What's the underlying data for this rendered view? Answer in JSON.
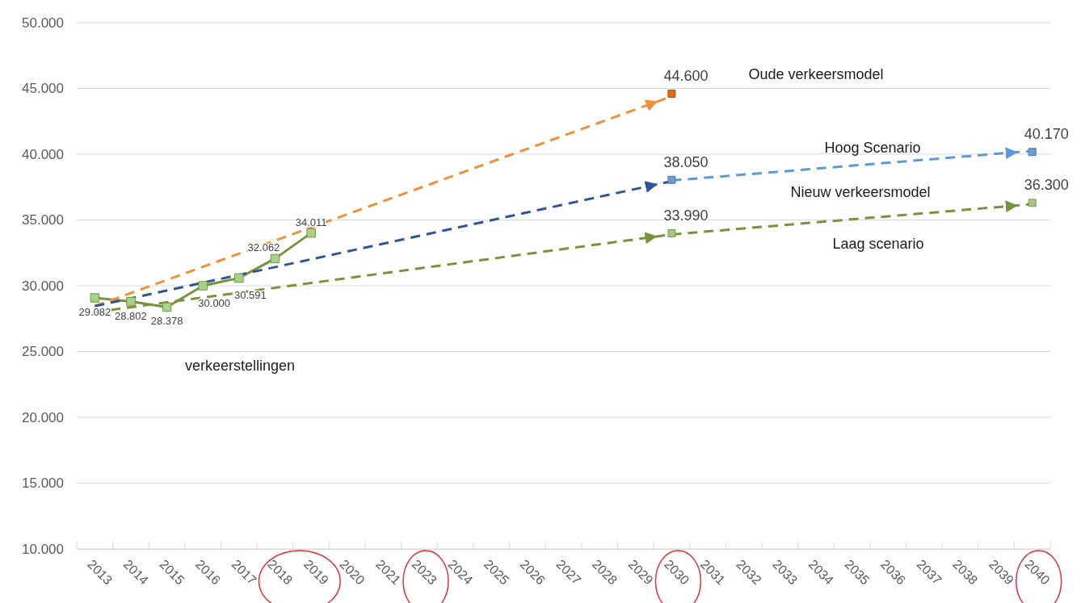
{
  "chart_data": {
    "type": "line",
    "categories": [
      "2013",
      "2014",
      "2015",
      "2016",
      "2017",
      "2018",
      "2019",
      "2020",
      "2021",
      "2023",
      "2024",
      "2025",
      "2026",
      "2027",
      "2028",
      "2029",
      "2030",
      "2031",
      "2032",
      "2033",
      "2034",
      "2035",
      "2036",
      "2037",
      "2038",
      "2039",
      "2040"
    ],
    "ylim": [
      10000,
      50000
    ],
    "yticks": [
      {
        "value": 10000,
        "label": "10.000"
      },
      {
        "value": 15000,
        "label": "15.000"
      },
      {
        "value": 20000,
        "label": "20.000"
      },
      {
        "value": 25000,
        "label": "25.000"
      },
      {
        "value": 30000,
        "label": "30.000"
      },
      {
        "value": 35000,
        "label": "35.000"
      },
      {
        "value": 40000,
        "label": "40.000"
      },
      {
        "value": 45000,
        "label": "45.000"
      },
      {
        "value": 50000,
        "label": "50.000"
      }
    ],
    "grid": "y",
    "series": [
      {
        "type": "line",
        "color": "#77933c",
        "marker": "square",
        "line_style": "solid",
        "values": [
          29082,
          28802,
          28378,
          30000,
          30591,
          32062,
          34011,
          null,
          null,
          null,
          null,
          null,
          null,
          null,
          null,
          null,
          null,
          null,
          null,
          null,
          null,
          null,
          null,
          null,
          null,
          null,
          null
        ],
        "value_labels": [
          "29.082",
          "28.802",
          "28.378",
          "30.000",
          "30.591",
          "32.062",
          "34.011",
          null,
          null,
          null,
          null,
          null,
          null,
          null,
          null,
          null,
          null,
          null,
          null,
          null,
          null,
          null,
          null,
          null,
          null,
          null,
          null
        ]
      },
      {
        "type": "line",
        "color": "#f0913a",
        "marker": "none",
        "line_style": "dashed",
        "values": [
          28450,
          null,
          null,
          null,
          null,
          null,
          null,
          null,
          null,
          null,
          null,
          null,
          null,
          null,
          null,
          null,
          44400,
          null,
          null,
          null,
          null,
          null,
          null,
          null,
          null,
          null,
          null
        ]
      },
      {
        "type": "line",
        "color": "#2f5597",
        "marker": "none",
        "line_style": "dashed",
        "values": [
          28450,
          null,
          null,
          null,
          null,
          null,
          null,
          null,
          null,
          null,
          null,
          null,
          null,
          null,
          null,
          null,
          37950,
          null,
          null,
          null,
          null,
          null,
          null,
          null,
          null,
          null,
          null
        ]
      },
      {
        "type": "line",
        "color": "#77933c",
        "marker": "none",
        "line_style": "dashed",
        "values": [
          28000,
          null,
          null,
          null,
          null,
          null,
          null,
          null,
          null,
          null,
          null,
          null,
          null,
          null,
          null,
          null,
          33900,
          null,
          null,
          null,
          null,
          null,
          null,
          null,
          null,
          null,
          null
        ]
      },
      {
        "type": "line",
        "color": "#5b9bd5",
        "marker": "none",
        "line_style": "dashed",
        "values": [
          null,
          null,
          null,
          null,
          null,
          null,
          null,
          null,
          null,
          null,
          null,
          null,
          null,
          null,
          null,
          null,
          38000,
          null,
          null,
          null,
          null,
          null,
          null,
          null,
          null,
          null,
          40250
        ]
      },
      {
        "type": "line",
        "color": "#77933c",
        "marker": "none",
        "line_style": "dashed",
        "values": [
          null,
          null,
          null,
          null,
          null,
          null,
          null,
          null,
          null,
          null,
          null,
          null,
          null,
          null,
          null,
          null,
          33900,
          null,
          null,
          null,
          null,
          null,
          null,
          null,
          null,
          null,
          36200
        ]
      },
      {
        "type": "scatter",
        "color": "#e46c0a",
        "marker": "square",
        "values": [
          null,
          null,
          null,
          null,
          null,
          null,
          null,
          null,
          null,
          null,
          null,
          null,
          null,
          null,
          null,
          null,
          44600,
          null,
          null,
          null,
          null,
          null,
          null,
          null,
          null,
          null,
          null
        ],
        "value_labels": [
          null,
          null,
          null,
          null,
          null,
          null,
          null,
          null,
          null,
          null,
          null,
          null,
          null,
          null,
          null,
          null,
          "44.600",
          null,
          null,
          null,
          null,
          null,
          null,
          null,
          null,
          null,
          null
        ]
      },
      {
        "type": "scatter",
        "color": "#6d9bd4",
        "marker": "square",
        "values": [
          null,
          null,
          null,
          null,
          null,
          null,
          null,
          null,
          null,
          null,
          null,
          null,
          null,
          null,
          null,
          null,
          38050,
          null,
          null,
          null,
          null,
          null,
          null,
          null,
          null,
          null,
          40170
        ],
        "value_labels": [
          null,
          null,
          null,
          null,
          null,
          null,
          null,
          null,
          null,
          null,
          null,
          null,
          null,
          null,
          null,
          null,
          "38.050",
          null,
          null,
          null,
          null,
          null,
          null,
          null,
          null,
          null,
          "40.170"
        ]
      },
      {
        "type": "scatter",
        "color": "#a9c47f",
        "marker": "square",
        "values": [
          null,
          null,
          null,
          null,
          null,
          null,
          null,
          null,
          null,
          null,
          null,
          null,
          null,
          null,
          null,
          null,
          33990,
          null,
          null,
          null,
          null,
          null,
          null,
          null,
          null,
          null,
          36300
        ],
        "value_labels": [
          null,
          null,
          null,
          null,
          null,
          null,
          null,
          null,
          null,
          null,
          null,
          null,
          null,
          null,
          null,
          null,
          "33.990",
          null,
          null,
          null,
          null,
          null,
          null,
          null,
          null,
          null,
          "36.300"
        ]
      }
    ],
    "annotations": [
      "Oude verkeersmodel",
      "Hoog Scenario",
      "Nieuw verkeersmodel",
      "Laag scenario",
      "verkeerstellingen"
    ]
  }
}
